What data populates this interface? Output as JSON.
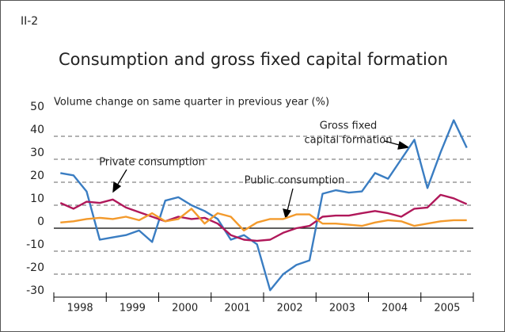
{
  "panel_label": "II-2",
  "chart_data": {
    "type": "line",
    "title": "Consumption and gross fixed capital formation",
    "y_axis_label": "Volume change on same quarter in previous year (%)",
    "categories": [
      null,
      "1998",
      null,
      null,
      null,
      "1999",
      null,
      null,
      null,
      "2000",
      null,
      null,
      null,
      "2001",
      null,
      null,
      null,
      "2002",
      null,
      null,
      null,
      "2003",
      null,
      null,
      null,
      "2004",
      null,
      null,
      null,
      "2005",
      null,
      null
    ],
    "ylim": [
      -30,
      50
    ],
    "yticks": [
      -30,
      -20,
      -10,
      0,
      10,
      20,
      30,
      40,
      50
    ],
    "grid": true,
    "series": [
      {
        "name": "Gross fixed capital formation",
        "color": "#3a7dc2",
        "values": [
          24,
          23,
          16,
          -5,
          -4,
          -3,
          -1,
          -6,
          12,
          13.5,
          10,
          7.5,
          4,
          -5,
          -3,
          -7,
          -27,
          -20,
          -16,
          -14,
          15,
          16.5,
          15.5,
          16,
          24,
          21.5,
          30,
          38.5,
          17.5,
          33,
          47,
          35
        ]
      },
      {
        "name": "Private consumption",
        "color": "#b0185a",
        "values": [
          11,
          8.5,
          11.5,
          11,
          12.5,
          9,
          7,
          5,
          3,
          5,
          4,
          4.5,
          2,
          -3,
          -5,
          -5.5,
          -5,
          -2,
          0,
          1,
          5,
          5.5,
          5.5,
          6.5,
          7.5,
          6.5,
          5,
          8.5,
          9,
          14.5,
          13,
          10.5
        ]
      },
      {
        "name": "Public consumption",
        "color": "#f39a2c",
        "values": [
          2.5,
          3,
          4,
          4.5,
          4,
          5,
          3.5,
          6.5,
          3,
          4,
          8.5,
          2,
          6.5,
          5,
          -1,
          2.5,
          4,
          4,
          6,
          6,
          2,
          2,
          1.5,
          1,
          2.5,
          3.5,
          3,
          1,
          2,
          3,
          3.5,
          3.5
        ]
      }
    ],
    "annotations": [
      [
        "Gross fixed",
        "capital formation"
      ],
      "Private consumption",
      "Public consumption"
    ]
  }
}
